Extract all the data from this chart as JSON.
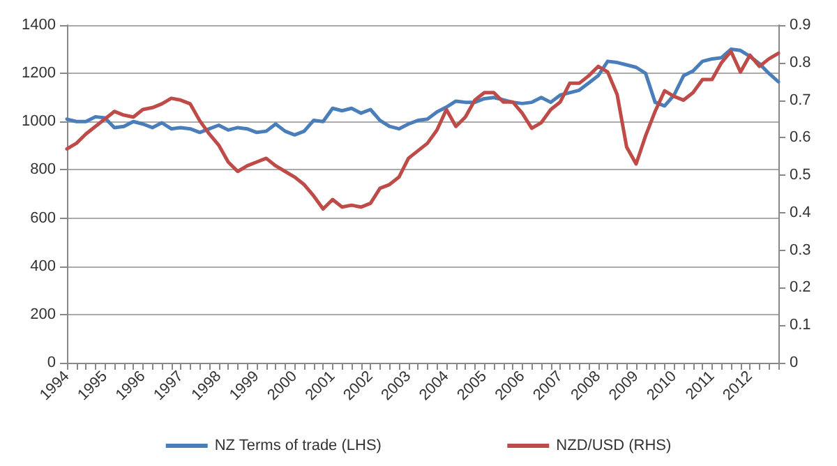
{
  "chart_data": {
    "type": "line",
    "categories": [
      "1994",
      null,
      null,
      null,
      "1995",
      null,
      null,
      null,
      "1996",
      null,
      null,
      null,
      "1997",
      null,
      null,
      null,
      "1998",
      null,
      null,
      null,
      "1999",
      null,
      null,
      null,
      "2000",
      null,
      null,
      null,
      "2001",
      null,
      null,
      null,
      "2002",
      null,
      null,
      null,
      "2003",
      null,
      null,
      null,
      "2004",
      null,
      null,
      null,
      "2005",
      null,
      null,
      null,
      "2006",
      null,
      null,
      null,
      "2007",
      null,
      null,
      null,
      "2008",
      null,
      null,
      null,
      "2009",
      null,
      null,
      null,
      "2010",
      null,
      null,
      null,
      "2011",
      null,
      null,
      null,
      "2012",
      null,
      null,
      null
    ],
    "series": [
      {
        "name": "NZ Terms of trade (LHS)",
        "color": "#4a7ebb",
        "values": [
          1010,
          1000,
          1000,
          1020,
          1015,
          975,
          980,
          1000,
          990,
          975,
          995,
          970,
          975,
          970,
          955,
          970,
          985,
          965,
          975,
          970,
          955,
          960,
          990,
          960,
          945,
          960,
          1005,
          1000,
          1055,
          1045,
          1055,
          1035,
          1050,
          1005,
          980,
          970,
          990,
          1005,
          1010,
          1040,
          1060,
          1085,
          1080,
          1080,
          1095,
          1100,
          1090,
          1080,
          1075,
          1080,
          1100,
          1080,
          1110,
          1120,
          1130,
          1160,
          1190,
          1250,
          1245,
          1235,
          1225,
          1200,
          1080,
          1065,
          1110,
          1190,
          1210,
          1250,
          1260,
          1265,
          1300,
          1295,
          1270,
          1240,
          1200,
          1165
        ]
      },
      {
        "name": "NZD/USD (RHS)",
        "color": "#be4b48",
        "axis": "y2",
        "values": [
          0.57,
          0.585,
          0.61,
          0.63,
          0.65,
          0.67,
          0.66,
          0.655,
          0.675,
          0.68,
          0.69,
          0.705,
          0.7,
          0.69,
          0.645,
          0.61,
          0.58,
          0.535,
          0.51,
          0.525,
          0.535,
          0.545,
          0.525,
          0.51,
          0.495,
          0.475,
          0.445,
          0.41,
          0.435,
          0.415,
          0.42,
          0.415,
          0.425,
          0.465,
          0.475,
          0.495,
          0.545,
          0.565,
          0.585,
          0.62,
          0.675,
          0.63,
          0.655,
          0.7,
          0.72,
          0.72,
          0.695,
          0.695,
          0.665,
          0.625,
          0.64,
          0.675,
          0.695,
          0.745,
          0.745,
          0.765,
          0.79,
          0.775,
          0.715,
          0.575,
          0.53,
          0.605,
          0.67,
          0.725,
          0.71,
          0.7,
          0.72,
          0.755,
          0.755,
          0.8,
          0.83,
          0.775,
          0.82,
          0.79,
          0.81,
          0.825
        ]
      }
    ],
    "ylim": [
      0,
      1400
    ],
    "yticks": [
      0,
      200,
      400,
      600,
      800,
      1000,
      1200,
      1400
    ],
    "y2lim": [
      0,
      0.9
    ],
    "y2ticks": [
      0,
      0.1,
      0.2,
      0.3,
      0.4,
      0.5,
      0.6,
      0.7,
      0.8,
      0.9
    ],
    "grid": "y",
    "legend": "bottom",
    "marker": "none",
    "line_style": "solid"
  }
}
